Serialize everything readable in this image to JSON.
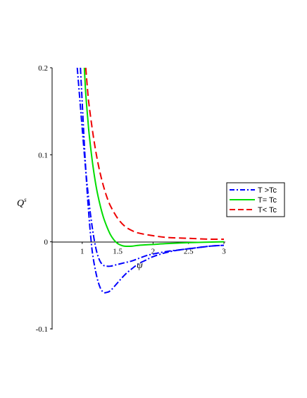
{
  "chart_data": {
    "type": "line",
    "title": "",
    "xlabel": "ψ",
    "ylabel": "Q",
    "ylabel_superscript": "s",
    "xlim": [
      0.575,
      3.0
    ],
    "ylim": [
      -0.1,
      0.2
    ],
    "x_ticks": [
      {
        "value": 1,
        "label": "1"
      },
      {
        "value": 1.5,
        "label": "1.5"
      },
      {
        "value": 2,
        "label": "2"
      },
      {
        "value": 2.5,
        "label": "2.5"
      },
      {
        "value": 3,
        "label": "3"
      }
    ],
    "y_ticks": [
      {
        "value": 0.2,
        "label": "0.2"
      },
      {
        "value": 0.1,
        "label": "0.1"
      },
      {
        "value": 0,
        "label": "0"
      },
      {
        "value": -0.1,
        "label": "-0.1"
      }
    ],
    "legend_position": "right",
    "grid": false,
    "series": [
      {
        "name": "T >Tc",
        "color": "#0000ff",
        "dash": "dashdot",
        "curves": [
          {
            "x": [
              0.93,
              0.96,
              1.0,
              1.05,
              1.1,
              1.15,
              1.2,
              1.25,
              1.3,
              1.35,
              1.4,
              1.5,
              1.6,
              1.7,
              1.8,
              1.9,
              2.0,
              2.2,
              2.4,
              2.6,
              2.8,
              3.0
            ],
            "y": [
              0.2,
              0.17,
              0.13,
              0.082,
              0.043,
              0.012,
              -0.01,
              -0.022,
              -0.027,
              -0.028,
              -0.028,
              -0.026,
              -0.024,
              -0.022,
              -0.019,
              -0.016,
              -0.014,
              -0.011,
              -0.009,
              -0.007,
              -0.005,
              -0.004
            ]
          },
          {
            "x": [
              0.975,
              1.0,
              1.03,
              1.06,
              1.09,
              1.12,
              1.15,
              1.2,
              1.25,
              1.3,
              1.35,
              1.4,
              1.5,
              1.6,
              1.7,
              1.8,
              1.9,
              2.0,
              2.2,
              2.4,
              2.6,
              2.8,
              3.0
            ],
            "y": [
              0.2,
              0.16,
              0.112,
              0.07,
              0.035,
              0.006,
              -0.016,
              -0.038,
              -0.052,
              -0.058,
              -0.058,
              -0.056,
              -0.047,
              -0.038,
              -0.031,
              -0.025,
              -0.021,
              -0.017,
              -0.012,
              -0.009,
              -0.007,
              -0.005,
              -0.004
            ]
          }
        ]
      },
      {
        "name": "T= Tc",
        "color": "#00dd00",
        "dash": "solid",
        "curves": [
          {
            "x": [
              1.03,
              1.05,
              1.08,
              1.1,
              1.15,
              1.2,
              1.25,
              1.3,
              1.35,
              1.4,
              1.45,
              1.5,
              1.55,
              1.6,
              1.7,
              1.8,
              2.0,
              2.2,
              2.5,
              3.0
            ],
            "y": [
              0.2,
              0.17,
              0.14,
              0.122,
              0.088,
              0.062,
              0.043,
              0.028,
              0.017,
              0.008,
              0.002,
              -0.002,
              -0.004,
              -0.005,
              -0.005,
              -0.004,
              -0.003,
              -0.002,
              -0.001,
              0.0
            ]
          }
        ]
      },
      {
        "name": "T< Tc",
        "color": "#ee0000",
        "dash": "dashed",
        "curves": [
          {
            "x": [
              1.05,
              1.08,
              1.1,
              1.15,
              1.2,
              1.25,
              1.3,
              1.35,
              1.4,
              1.5,
              1.6,
              1.7,
              1.8,
              2.0,
              2.2,
              2.5,
              2.8,
              3.0
            ],
            "y": [
              0.2,
              0.17,
              0.155,
              0.125,
              0.1,
              0.08,
              0.064,
              0.051,
              0.041,
              0.027,
              0.018,
              0.013,
              0.01,
              0.007,
              0.005,
              0.004,
              0.003,
              0.003
            ]
          }
        ]
      }
    ]
  }
}
